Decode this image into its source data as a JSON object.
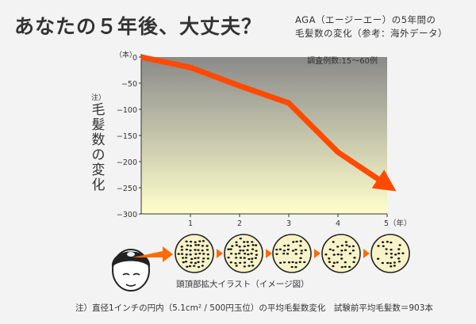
{
  "header": {
    "title": "あなたの５年後、大丈夫？",
    "subtitle_line1": "AGA（エージーエー）の5年間の",
    "subtitle_line2": "毛髪数の変化（参考：海外データ）"
  },
  "colors": {
    "line": "#ff4a00",
    "fill_top": "#8a8a8a",
    "fill_bottom": "#ffffcc",
    "arrow": "#ff6a00",
    "circle_fill": "#f7f3c8"
  },
  "chart_data": {
    "type": "line",
    "x": [
      0,
      1,
      2,
      3,
      4,
      5
    ],
    "y": [
      0,
      -20,
      -55,
      -88,
      -182,
      -245
    ],
    "x_ticks": [
      "1",
      "2",
      "3",
      "4",
      "5（年）"
    ],
    "y_ticks": [
      "0",
      "−50",
      "−100",
      "−150",
      "−200",
      "−250",
      "−300"
    ],
    "y_unit": "（本）",
    "ylim": [
      -300,
      0
    ],
    "xlim": [
      0,
      5
    ],
    "ylabel_note": "注）",
    "ylabel": "毛髪数の変化",
    "annotation": "調査例数:15〜60例",
    "arrow_end": true
  },
  "illustration": {
    "caption": "頭頂部拡大イラスト（イメージ図）",
    "circles": 5,
    "dot_density": [
      1.0,
      0.85,
      0.7,
      0.55,
      0.45
    ]
  },
  "footnote": "注）直径1インチの円内（5.1cm² / 500円玉位）の平均毛髪数変化　試験前平均毛髪数＝903本"
}
